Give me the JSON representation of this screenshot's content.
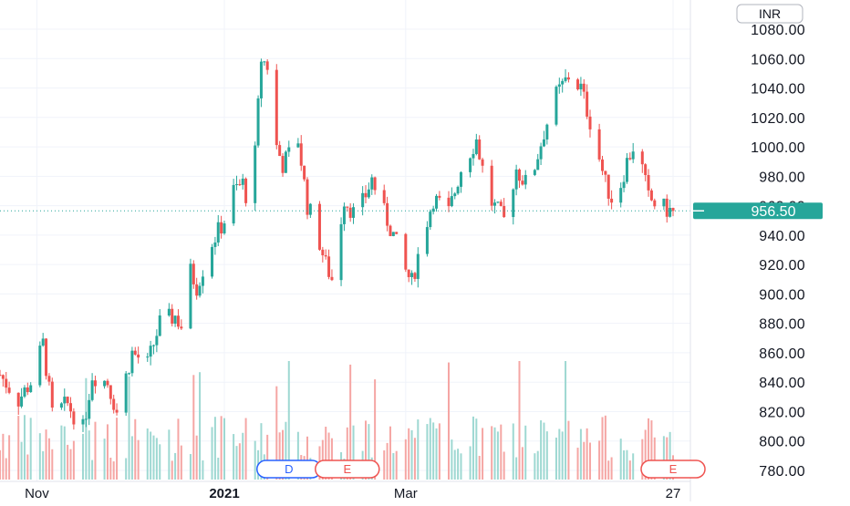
{
  "currency_label": "INR",
  "last_price_label": "956.50",
  "colors": {
    "up": "#26a69a",
    "down": "#ef5350",
    "up_volume": "#9ed8d2",
    "down_volume": "#f5a6a4",
    "last_price_bg": "#26a69a",
    "grid": "#f0f3fa",
    "event_dividend": "#2962ff",
    "event_earnings": "#ef5350"
  },
  "events": [
    {
      "label": "D",
      "kind": "dividend",
      "date": "2021-01-22"
    },
    {
      "label": "E",
      "kind": "earnings",
      "date": "2021-02-10"
    },
    {
      "label": "E",
      "kind": "earnings",
      "date": "2021-05-27"
    }
  ],
  "chart_data": {
    "type": "candlestick",
    "title": "",
    "xlabel": "",
    "ylabel": "",
    "y_ticks": [
      780,
      800,
      820,
      840,
      860,
      880,
      900,
      920,
      940,
      960,
      980,
      1000,
      1020,
      1040,
      1060,
      1080
    ],
    "y_tick_labels": [
      "780.00",
      "800.00",
      "820.00",
      "840.00",
      "860.00",
      "880.00",
      "900.00",
      "920.00",
      "940.00",
      "960.00",
      "980.00",
      "1000.00",
      "1020.00",
      "1040.00",
      "1060.00",
      "1080.00"
    ],
    "x_ticks": [
      {
        "label": "Nov",
        "date": "2020-11-01"
      },
      {
        "label": "2021",
        "date": "2021-01-01",
        "bold": true
      },
      {
        "label": "Mar",
        "date": "2021-03-01"
      },
      {
        "label": "27",
        "date": "2021-05-27"
      }
    ],
    "last_price": 956.5,
    "grid": true,
    "close_path": [
      [
        "2020-10-20",
        845
      ],
      [
        "2020-10-26",
        828
      ],
      [
        "2020-10-30",
        840
      ],
      [
        "2020-11-03",
        866
      ],
      [
        "2020-11-06",
        818
      ],
      [
        "2020-11-11",
        825
      ],
      [
        "2020-11-16",
        808
      ],
      [
        "2020-11-19",
        845
      ],
      [
        "2020-11-24",
        840
      ],
      [
        "2020-11-27",
        820
      ],
      [
        "2020-12-02",
        860
      ],
      [
        "2020-12-07",
        852
      ],
      [
        "2020-12-11",
        880
      ],
      [
        "2020-12-16",
        885
      ],
      [
        "2020-12-18",
        878
      ],
      [
        "2020-12-21",
        915
      ],
      [
        "2020-12-23",
        905
      ],
      [
        "2020-12-28",
        935
      ],
      [
        "2021-01-01",
        950
      ],
      [
        "2021-01-04",
        970
      ],
      [
        "2021-01-07",
        975
      ],
      [
        "2021-01-09",
        960
      ],
      [
        "2021-01-11",
        995
      ],
      [
        "2021-01-13",
        1060
      ],
      [
        "2021-01-15",
        1055
      ],
      [
        "2021-01-18",
        1000
      ],
      [
        "2021-01-20",
        988
      ],
      [
        "2021-01-25",
        1005
      ],
      [
        "2021-01-28",
        960
      ],
      [
        "2021-01-30",
        950
      ],
      [
        "2021-02-03",
        920
      ],
      [
        "2021-02-05",
        910
      ],
      [
        "2021-02-09",
        965
      ],
      [
        "2021-02-12",
        955
      ],
      [
        "2021-02-15",
        962
      ],
      [
        "2021-02-18",
        978
      ],
      [
        "2021-02-22",
        955
      ],
      [
        "2021-02-25",
        940
      ],
      [
        "2021-03-01",
        915
      ],
      [
        "2021-03-03",
        908
      ],
      [
        "2021-03-06",
        935
      ],
      [
        "2021-03-10",
        965
      ],
      [
        "2021-03-15",
        955
      ],
      [
        "2021-03-19",
        985
      ],
      [
        "2021-03-24",
        1005
      ],
      [
        "2021-03-28",
        965
      ],
      [
        "2021-04-02",
        950
      ],
      [
        "2021-04-06",
        985
      ],
      [
        "2021-04-10",
        972
      ],
      [
        "2021-04-15",
        1010
      ],
      [
        "2021-04-19",
        1035
      ],
      [
        "2021-04-23",
        1048
      ],
      [
        "2021-04-27",
        1040
      ],
      [
        "2021-05-01",
        1010
      ],
      [
        "2021-05-05",
        975
      ],
      [
        "2021-05-08",
        960
      ],
      [
        "2021-05-12",
        990
      ],
      [
        "2021-05-15",
        1005
      ],
      [
        "2021-05-19",
        965
      ],
      [
        "2021-05-22",
        960
      ],
      [
        "2021-05-26",
        956.5
      ]
    ]
  }
}
